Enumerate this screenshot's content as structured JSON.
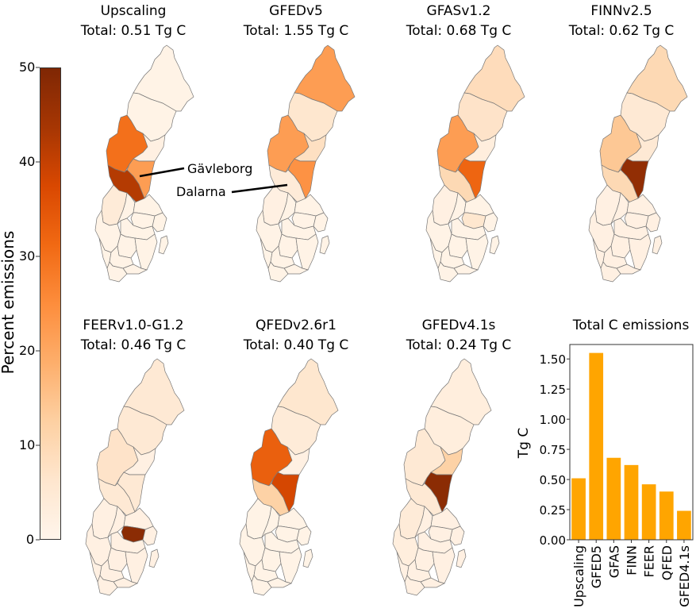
{
  "chart_data": {
    "type": "choropleth+bar",
    "colorbar": {
      "label": "Percent emissions",
      "range": [
        0,
        50
      ],
      "ticks": [
        "0",
        "10",
        "20",
        "30",
        "40",
        "50"
      ],
      "colormap": "Oranges"
    },
    "regions": [
      "Norrbotten",
      "Vasterbotten",
      "Jamtland",
      "Vasternorrland",
      "Gavleborg",
      "Dalarna",
      "Varmland",
      "Orebro",
      "Vastmanland-Uppsala",
      "Stockholm",
      "Sodermanland",
      "Vastra-Gotaland",
      "Ostergotland",
      "Jonkoping",
      "Kalmar",
      "Halland",
      "Kronoberg",
      "Blekinge",
      "Skane",
      "Gotland"
    ],
    "maps": [
      {
        "name": "Upscaling",
        "total": "Total: 0.51 Tg C",
        "values": [
          1,
          1,
          30,
          2,
          22,
          42,
          4,
          1,
          1,
          1,
          1,
          1,
          1,
          1,
          1,
          1,
          1,
          1,
          1,
          1
        ]
      },
      {
        "name": "GFEDv5",
        "total": "Total: 1.55 Tg C",
        "values": [
          22,
          6,
          22,
          8,
          24,
          4,
          2,
          1,
          1,
          1,
          1,
          1,
          1,
          1,
          1,
          1,
          1,
          1,
          1,
          1
        ]
      },
      {
        "name": "GFASv1.2",
        "total": "Total: 0.68 Tg C",
        "values": [
          9,
          7,
          22,
          3,
          32,
          10,
          2,
          1,
          1,
          1,
          6,
          1,
          1,
          1,
          1,
          1,
          1,
          1,
          1,
          1
        ]
      },
      {
        "name": "FINNv2.5",
        "total": "Total: 0.62 Tg C",
        "values": [
          10,
          5,
          14,
          5,
          47,
          10,
          2,
          2,
          2,
          2,
          2,
          2,
          2,
          2,
          2,
          2,
          2,
          2,
          2,
          2
        ]
      },
      {
        "name": "FEERv1.0-G1.2",
        "total": "Total: 0.46 Tg C",
        "values": [
          5,
          5,
          7,
          2,
          5,
          5,
          2,
          2,
          2,
          2,
          48,
          2,
          2,
          2,
          2,
          2,
          2,
          2,
          2,
          2
        ]
      },
      {
        "name": "QFEDv2.6r1",
        "total": "Total: 0.40 Tg C",
        "values": [
          6,
          4,
          33,
          2,
          38,
          12,
          1,
          1,
          1,
          1,
          1,
          1,
          1,
          1,
          1,
          1,
          1,
          1,
          1,
          1
        ]
      },
      {
        "name": "GFEDv4.1s",
        "total": "Total: 0.24 Tg C",
        "values": [
          3,
          3,
          5,
          12,
          48,
          5,
          4,
          2,
          2,
          2,
          2,
          3,
          2,
          2,
          2,
          2,
          2,
          2,
          2,
          2
        ]
      }
    ],
    "annotations": [
      "Gävleborg",
      "Dalarna"
    ],
    "bar": {
      "type": "bar",
      "title": "Total C emissions",
      "ylabel": "Tg C",
      "ylim": [
        0,
        1.62
      ],
      "yticks": [
        "0.00",
        "0.25",
        "0.50",
        "0.75",
        "1.00",
        "1.25",
        "1.50"
      ],
      "categories": [
        "Upscaling",
        "GFED5",
        "GFAS",
        "FINN",
        "FEER",
        "QFED",
        "GFED4.1s"
      ],
      "values": [
        0.51,
        1.55,
        0.68,
        0.62,
        0.46,
        0.4,
        0.24
      ],
      "color": "#ffa500"
    }
  }
}
